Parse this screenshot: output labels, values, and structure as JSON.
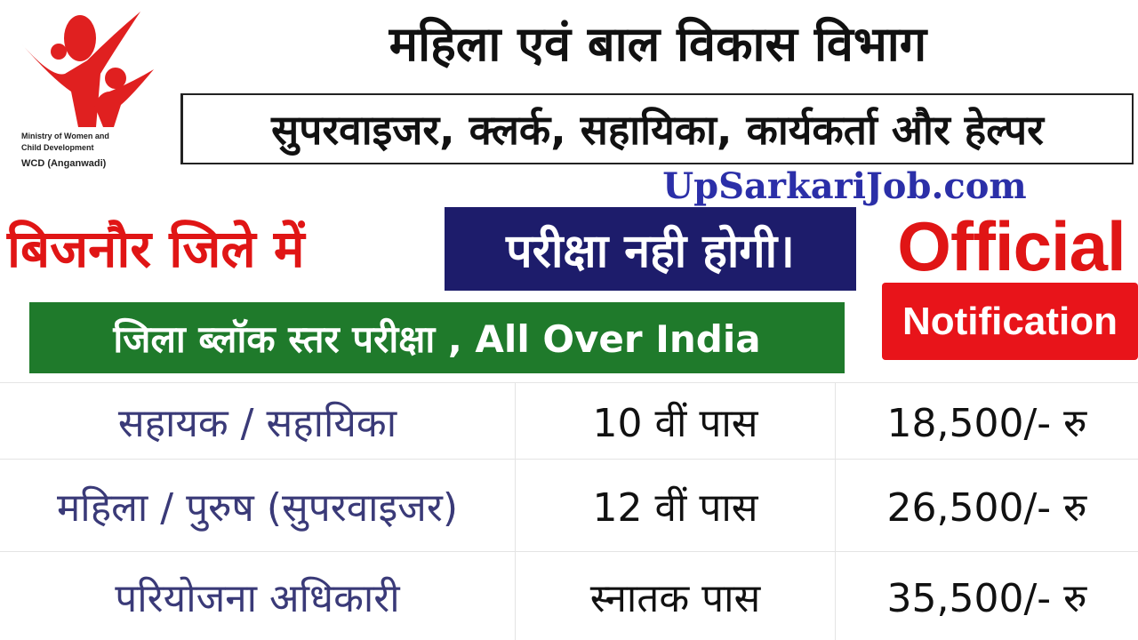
{
  "logo": {
    "line1": "Ministry of Women and",
    "line2": "Child Development",
    "line3": "WCD (Anganwadi)",
    "color": "#e02020"
  },
  "title": "महिला एवं बाल विकास विभाग",
  "subtitle": "सुपरवाइजर, क्लर्क, सहायिका, कार्यकर्ता और हेल्पर",
  "website": "UpSarkariJob.com",
  "district": "बिजनौर जिले में",
  "no_exam": "परीक्षा नही होगी।",
  "official": "Official",
  "notification": "Notification",
  "level": "जिला ब्लॉक स्तर परीक्षा , All Over India",
  "posts": [
    {
      "post": "सहायक / सहायिका",
      "qualification": "10 वीं पास",
      "salary": "18,500/- रु"
    },
    {
      "post": "महिला / पुरुष (सुपरवाइजर)",
      "qualification": "12 वीं पास",
      "salary": "26,500/- रु"
    },
    {
      "post": "परियोजना अधिकारी",
      "qualification": "स्नातक पास",
      "salary": "35,500/- रु"
    }
  ],
  "colors": {
    "red": "#e01515",
    "navy": "#1d1c6b",
    "green": "#1f7a2b",
    "blue": "#2b2fa8"
  }
}
